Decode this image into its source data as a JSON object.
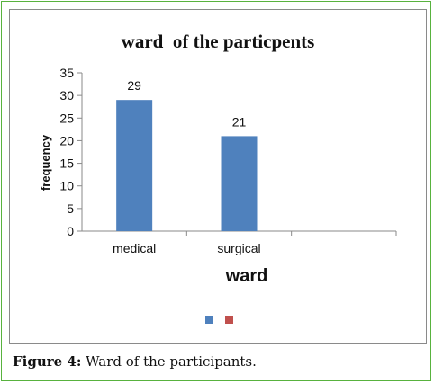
{
  "chart_data": {
    "type": "bar",
    "title": "ward  of the particpents",
    "xlabel": "ward",
    "ylabel": "frequency",
    "categories": [
      "medical",
      "surgical"
    ],
    "series": [
      {
        "values": [
          29,
          21
        ],
        "color": "#4f81bd"
      }
    ],
    "ylim": [
      0,
      35
    ],
    "yticks": [
      "0",
      "5",
      "10",
      "15",
      "20",
      "25",
      "30",
      "35"
    ],
    "data_labels": [
      "29",
      "21"
    ],
    "legend": {
      "position": "bottom",
      "colors": [
        "#4f81bd",
        "#c0504d"
      ]
    },
    "grid": false
  },
  "caption": {
    "label": "Figure 4:",
    "text": "Ward of the participants."
  },
  "colors": {
    "border": "#58b23e",
    "axis": "#8a8a8a"
  }
}
